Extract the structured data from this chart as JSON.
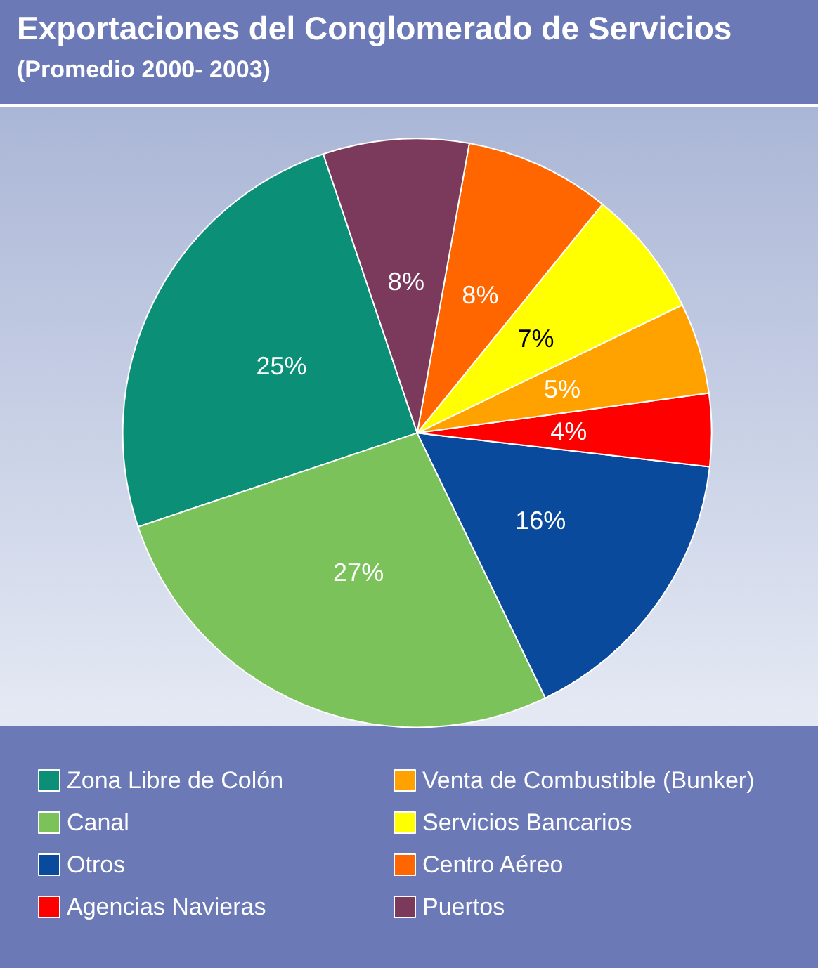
{
  "chart_data": {
    "type": "pie",
    "title": "Exportaciones del Conglomerado de Servicios",
    "subtitle": "(Promedio 2000- 2003)",
    "categories": [
      "Zona Libre de Colón",
      "Canal",
      "Otros",
      "Agencias Navieras",
      "Venta de Combustible (Bunker)",
      "Servicios Bancarios",
      "Centro Aéreo",
      "Puertos"
    ],
    "values": [
      25,
      27,
      16,
      4,
      5,
      7,
      8,
      8
    ],
    "colors": [
      "#0b8f77",
      "#7cc25a",
      "#0a4a9c",
      "#ff0000",
      "#ffa200",
      "#ffff00",
      "#ff6600",
      "#7b3a5c"
    ],
    "value_labels": [
      "25%",
      "27%",
      "16%",
      "4%",
      "5%",
      "7%",
      "8%",
      "8%"
    ],
    "legend": "bottom"
  }
}
